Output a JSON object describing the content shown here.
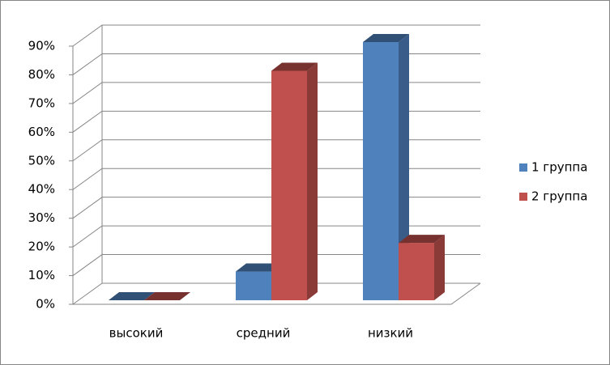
{
  "chart_data": {
    "type": "bar3d",
    "categories": [
      "высокий",
      "средний",
      "низкий"
    ],
    "series": [
      {
        "name": "1 группа",
        "color": "#4f81bd",
        "values": [
          0,
          10,
          90
        ]
      },
      {
        "name": "2 группа",
        "color": "#c0504d",
        "values": [
          0,
          80,
          20
        ]
      }
    ],
    "ylim": [
      0,
      90
    ],
    "yticks": [
      {
        "value": 0,
        "label": "0%"
      },
      {
        "value": 10,
        "label": "10%"
      },
      {
        "value": 20,
        "label": "20%"
      },
      {
        "value": 30,
        "label": "30%"
      },
      {
        "value": 40,
        "label": "40%"
      },
      {
        "value": 50,
        "label": "50%"
      },
      {
        "value": 60,
        "label": "60%"
      },
      {
        "value": 70,
        "label": "70%"
      },
      {
        "value": 80,
        "label": "80%"
      },
      {
        "value": 90,
        "label": "90%"
      }
    ],
    "grid": true,
    "legend": "right"
  }
}
